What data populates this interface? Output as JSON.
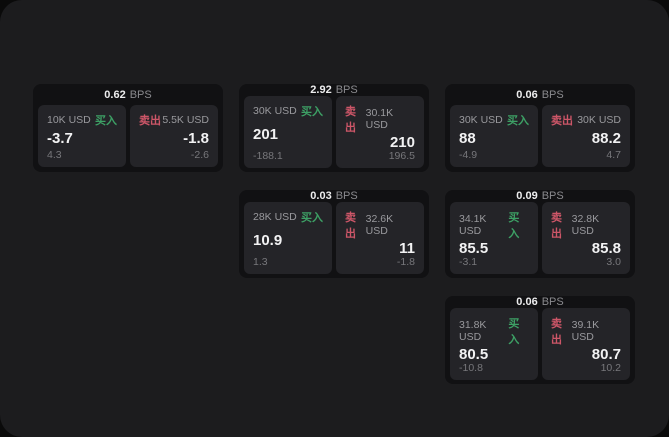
{
  "labels": {
    "bps": "BPS",
    "buy": "买入",
    "sell": "卖出"
  },
  "colors": {
    "buy_green": "#3da065",
    "sell_red": "#cd5668",
    "surface": "#1c1c1e",
    "card_bg": "#111113",
    "panel_bg": "#242428"
  },
  "cards": [
    {
      "bps": "0.62",
      "buy": {
        "amount": "10K USD",
        "price": "-3.7",
        "delta": "4.3"
      },
      "sell": {
        "amount": "5.5K USD",
        "price": "-1.8",
        "delta": "-2.6"
      }
    },
    {
      "bps": "2.92",
      "buy": {
        "amount": "30K USD",
        "price": "201",
        "delta": "-188.1"
      },
      "sell": {
        "amount": "30.1K USD",
        "price": "210",
        "delta": "196.5"
      }
    },
    {
      "bps": "0.06",
      "buy": {
        "amount": "30K USD",
        "price": "88",
        "delta": "-4.9"
      },
      "sell": {
        "amount": "30K USD",
        "price": "88.2",
        "delta": "4.7"
      }
    },
    {
      "bps": "0.03",
      "buy": {
        "amount": "28K USD",
        "price": "10.9",
        "delta": "1.3"
      },
      "sell": {
        "amount": "32.6K USD",
        "price": "11",
        "delta": "-1.8"
      }
    },
    {
      "bps": "0.09",
      "buy": {
        "amount": "34.1K USD",
        "price": "85.5",
        "delta": "-3.1"
      },
      "sell": {
        "amount": "32.8K USD",
        "price": "85.8",
        "delta": "3.0"
      }
    },
    {
      "bps": "0.06",
      "buy": {
        "amount": "31.8K USD",
        "price": "80.5",
        "delta": "-10.8"
      },
      "sell": {
        "amount": "39.1K USD",
        "price": "80.7",
        "delta": "10.2"
      }
    }
  ]
}
